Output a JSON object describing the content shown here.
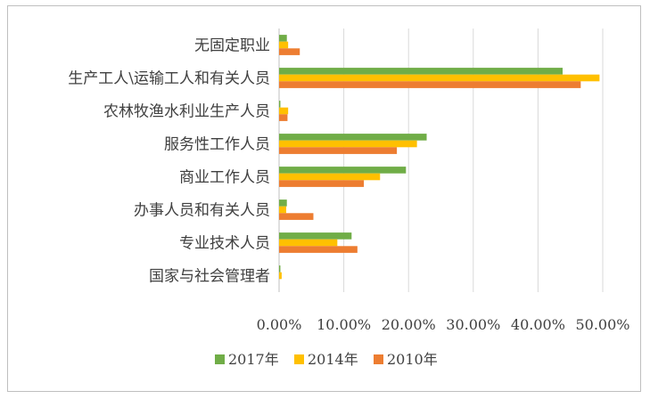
{
  "chart_data": {
    "type": "bar",
    "orientation": "horizontal",
    "title": "",
    "xlabel": "",
    "ylabel": "",
    "categories": [
      "无固定职业",
      "生产工人\\运输工人和有关人员",
      "农林牧渔水利业生产人员",
      "服务性工作人员",
      "商业工作人员",
      "办事人员和有关人员",
      "专业技术人员",
      "国家与社会管理者"
    ],
    "series": [
      {
        "name": "2017年",
        "color": "#70ad47",
        "values": [
          1.2,
          43.8,
          0.2,
          22.8,
          19.6,
          1.2,
          11.2,
          0.2
        ]
      },
      {
        "name": "2014年",
        "color": "#ffc000",
        "values": [
          1.4,
          49.5,
          1.4,
          21.3,
          15.6,
          1.1,
          9.0,
          0.4
        ]
      },
      {
        "name": "2010年",
        "color": "#ed7d31",
        "values": [
          3.2,
          46.6,
          1.3,
          18.2,
          13.1,
          5.3,
          12.1,
          0.0
        ]
      }
    ],
    "xlim": [
      0,
      50
    ],
    "xticks": [
      "0.00%",
      "10.00%",
      "20.00%",
      "30.00%",
      "40.00%",
      "50.00%"
    ],
    "grid": true,
    "legend": "bottom"
  }
}
